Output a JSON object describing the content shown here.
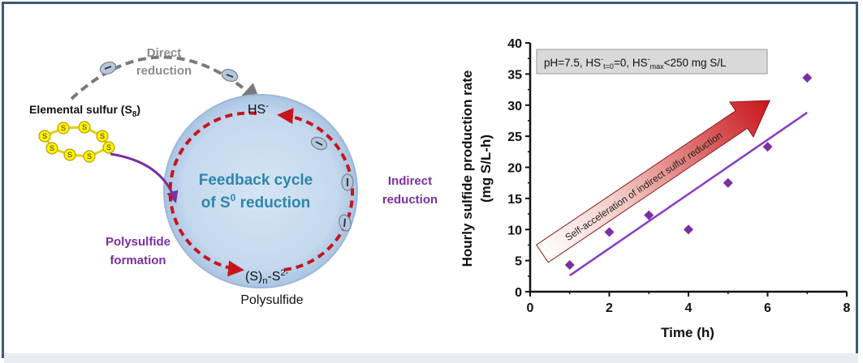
{
  "diagram": {
    "direct_reduction": {
      "line1": "Direct",
      "line2": "reduction"
    },
    "elemental_sulfur": {
      "main": "Elemental sulfur (S",
      "sub": "8",
      "close": ")"
    },
    "sulfur_atom_label": "S",
    "hs_label": {
      "main": "HS",
      "sup": "-"
    },
    "feedback_cycle": {
      "line1": "Feedback cycle",
      "line2_main": "of S",
      "line2_sup": "0",
      "line2_rest": " reduction"
    },
    "indirect_reduction": {
      "line1": "Indirect",
      "line2": "reduction"
    },
    "polysulfide_formation": {
      "line1": "Polysulfide",
      "line2": "formation"
    },
    "polysulfide_ion": {
      "p1": "(S)",
      "sub": "n",
      "p2": "-S",
      "sup": "2-"
    },
    "polysulfide_label": "Polysulfide"
  },
  "chart_data": {
    "type": "scatter",
    "ylabel_line1": "Hourly sulfide production rate",
    "ylabel_line2": "(mg S/L-h)",
    "xlabel": "Time (h)",
    "xlim": [
      0,
      8
    ],
    "ylim": [
      0,
      40
    ],
    "x_ticks": [
      "0",
      "2",
      "4",
      "6",
      "8"
    ],
    "y_ticks": [
      "0",
      "5",
      "10",
      "15",
      "20",
      "25",
      "30",
      "35",
      "40"
    ],
    "legend": {
      "p1": "pH=7.5, HS",
      "sup1": "-",
      "sub1": "t=0",
      "p2": "=0, HS",
      "sup2": "-",
      "sub2": "max",
      "p3": "<250 mg S/L"
    },
    "arrow_label": "Self-acceleration of indirect sulfur reduction",
    "points": {
      "x": [
        1,
        2,
        3,
        4,
        5,
        6,
        7
      ],
      "y": [
        4.3,
        9.6,
        12.3,
        10.0,
        17.5,
        23.3,
        34.4
      ]
    },
    "trendline": {
      "x": [
        1,
        7
      ],
      "y": [
        2.6,
        28.8
      ]
    },
    "colors": {
      "points": "#7b2fa3",
      "line": "#8a3cc4",
      "arrow_start": "#ffffff",
      "arrow_end": "#c8141b"
    }
  }
}
